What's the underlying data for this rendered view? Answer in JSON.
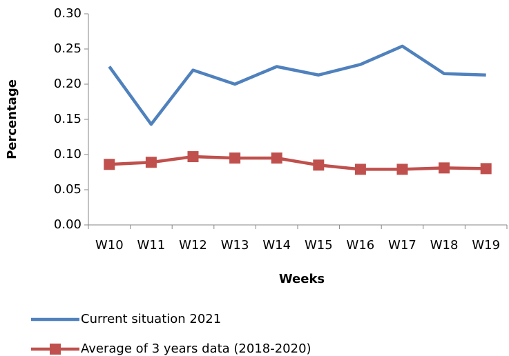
{
  "chart_data": {
    "type": "line",
    "x_label": "Weeks",
    "y_label": "Percentage",
    "categories": [
      "W10",
      "W11",
      "W12",
      "W13",
      "W14",
      "W15",
      "W16",
      "W17",
      "W18",
      "W19"
    ],
    "series": [
      {
        "name": "Current situation 2021",
        "color": "#4f81bd",
        "marker": false,
        "values": [
          0.225,
          0.143,
          0.22,
          0.2,
          0.225,
          0.213,
          0.228,
          0.254,
          0.215,
          0.213
        ]
      },
      {
        "name": "Average of 3 years data (2018-2020)",
        "color": "#c0504d",
        "marker": true,
        "values": [
          0.086,
          0.089,
          0.097,
          0.095,
          0.095,
          0.085,
          0.079,
          0.079,
          0.081,
          0.08
        ]
      }
    ],
    "ylim": [
      0,
      0.3
    ],
    "yticks": [
      {
        "value": 0,
        "label": "0.00"
      },
      0.05,
      {
        "value": 0.1,
        "label": "0.10"
      },
      0.15,
      {
        "value": 0.2,
        "label": "0.20"
      },
      0.25,
      {
        "value": 0.3,
        "label": "0.30"
      }
    ],
    "grid": false,
    "legend": "bottom"
  }
}
